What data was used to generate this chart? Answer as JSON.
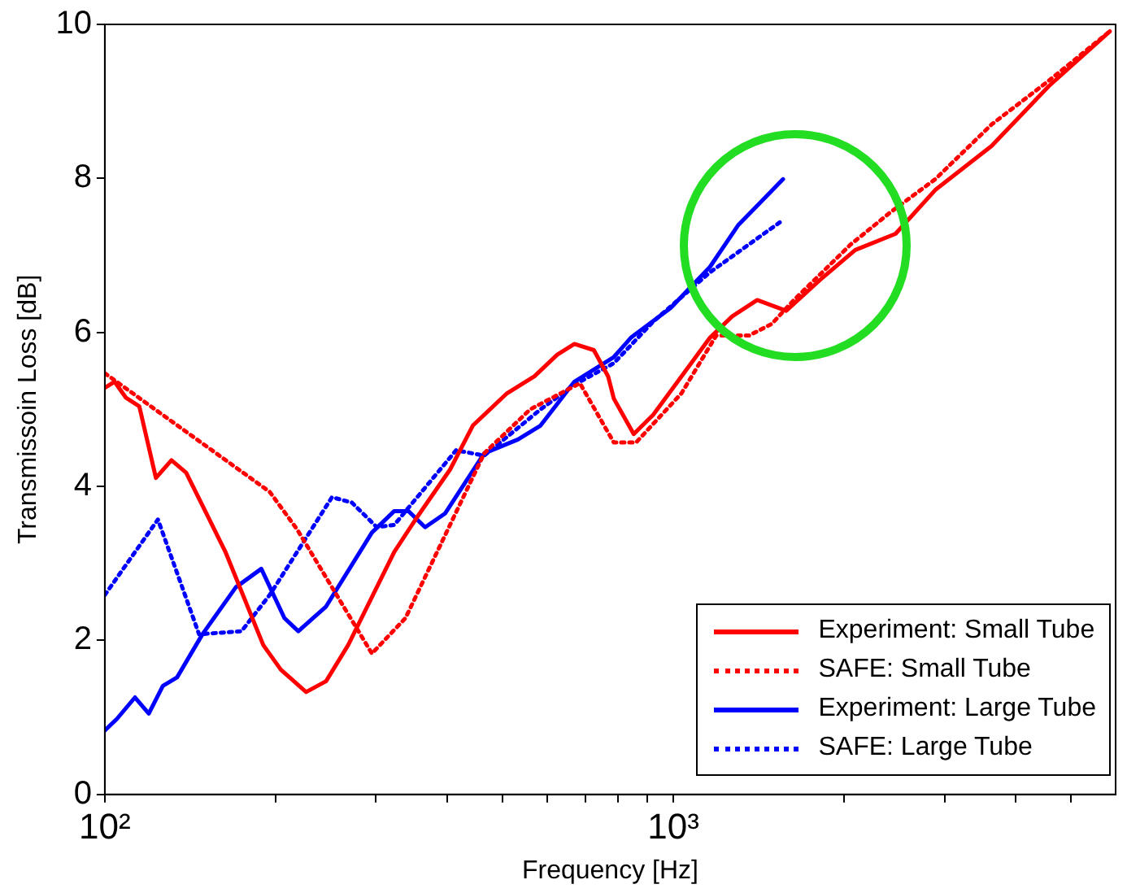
{
  "chart_data": {
    "type": "line",
    "xlabel": "Frequency [Hz]",
    "ylabel": "Transmissoin Loss [dB]",
    "log": "x",
    "grid": false,
    "legend": "bottom right",
    "marker": "none",
    "xlim": [
      100,
      6000
    ],
    "xticks": [
      {
        "value": 100,
        "label": "10²"
      },
      {
        "value": 200,
        "label": null
      },
      {
        "value": 300,
        "label": null
      },
      {
        "value": 400,
        "label": null
      },
      {
        "value": 500,
        "label": null
      },
      {
        "value": 600,
        "label": null
      },
      {
        "value": 700,
        "label": null
      },
      {
        "value": 800,
        "label": null
      },
      {
        "value": 900,
        "label": null
      },
      {
        "value": 1000,
        "label": "10³"
      },
      {
        "value": 2000,
        "label": null
      },
      {
        "value": 3000,
        "label": null
      },
      {
        "value": 4000,
        "label": null
      },
      {
        "value": 5000,
        "label": null
      }
    ],
    "ylim": [
      0,
      10
    ],
    "yticks": [
      0,
      2,
      4,
      6,
      8,
      10
    ],
    "series": [
      {
        "name": "Experiment: Small Tube",
        "color": "#ff0000",
        "line_style": "solid",
        "x": [
          100,
          104,
          109,
          115,
          123,
          131,
          139,
          163,
          190,
          204,
          226,
          245,
          268,
          323,
          352,
          405,
          444,
          510,
          570,
          625,
          670,
          725,
          768,
          786,
          852,
          922,
          1034,
          1160,
          1270,
          1405,
          1580,
          1830,
          2090,
          2460,
          2890,
          3630,
          4580,
          5860
        ],
        "values": [
          5.28,
          5.36,
          5.15,
          5.04,
          4.11,
          4.34,
          4.18,
          3.15,
          1.94,
          1.62,
          1.33,
          1.47,
          1.94,
          3.15,
          3.57,
          4.22,
          4.79,
          5.21,
          5.43,
          5.71,
          5.85,
          5.77,
          5.43,
          5.14,
          4.68,
          4.93,
          5.43,
          5.93,
          6.21,
          6.42,
          6.28,
          6.71,
          7.07,
          7.28,
          7.85,
          8.42,
          9.2,
          9.91
        ]
      },
      {
        "name": "SAFE: Small Tube",
        "color": "#ff0000",
        "line_style": "dotted",
        "x": [
          100,
          195,
          218,
          295,
          338,
          465,
          560,
          685,
          786,
          860,
          1034,
          1190,
          1360,
          1490,
          1630,
          2050,
          2410,
          2890,
          3630,
          4580,
          5860
        ],
        "values": [
          5.47,
          3.93,
          3.44,
          1.83,
          2.29,
          4.43,
          5.0,
          5.34,
          4.57,
          4.57,
          5.21,
          5.96,
          5.96,
          6.11,
          6.42,
          7.14,
          7.56,
          7.99,
          8.7,
          9.27,
          9.91
        ]
      },
      {
        "name": "Experiment: Large Tube",
        "color": "#0000ff",
        "line_style": "solid",
        "x": [
          100,
          105,
          113,
          119.5,
          126.5,
          134,
          148.5,
          170,
          188.5,
          207,
          219,
          245,
          295,
          323,
          342,
          366,
          397,
          465,
          533,
          584,
          670,
          786,
          842,
          990,
          1160,
          1300,
          1560
        ],
        "values": [
          0.83,
          0.98,
          1.26,
          1.05,
          1.41,
          1.52,
          2.08,
          2.69,
          2.93,
          2.29,
          2.12,
          2.44,
          3.4,
          3.68,
          3.68,
          3.47,
          3.65,
          4.43,
          4.61,
          4.79,
          5.36,
          5.68,
          5.93,
          6.32,
          6.85,
          7.39,
          7.99
        ]
      },
      {
        "name": "SAFE: Large Tube",
        "color": "#0000ff",
        "line_style": "dotted",
        "x": [
          100,
          124,
          146.5,
          174,
          195,
          251,
          272,
          301,
          323,
          415,
          465,
          584,
          670,
          786,
          922,
          1160,
          1560
        ],
        "values": [
          2.59,
          3.57,
          2.08,
          2.12,
          2.59,
          3.86,
          3.79,
          3.47,
          3.5,
          4.47,
          4.4,
          5.0,
          5.32,
          5.6,
          6.14,
          6.78,
          7.46
        ]
      }
    ]
  }
}
